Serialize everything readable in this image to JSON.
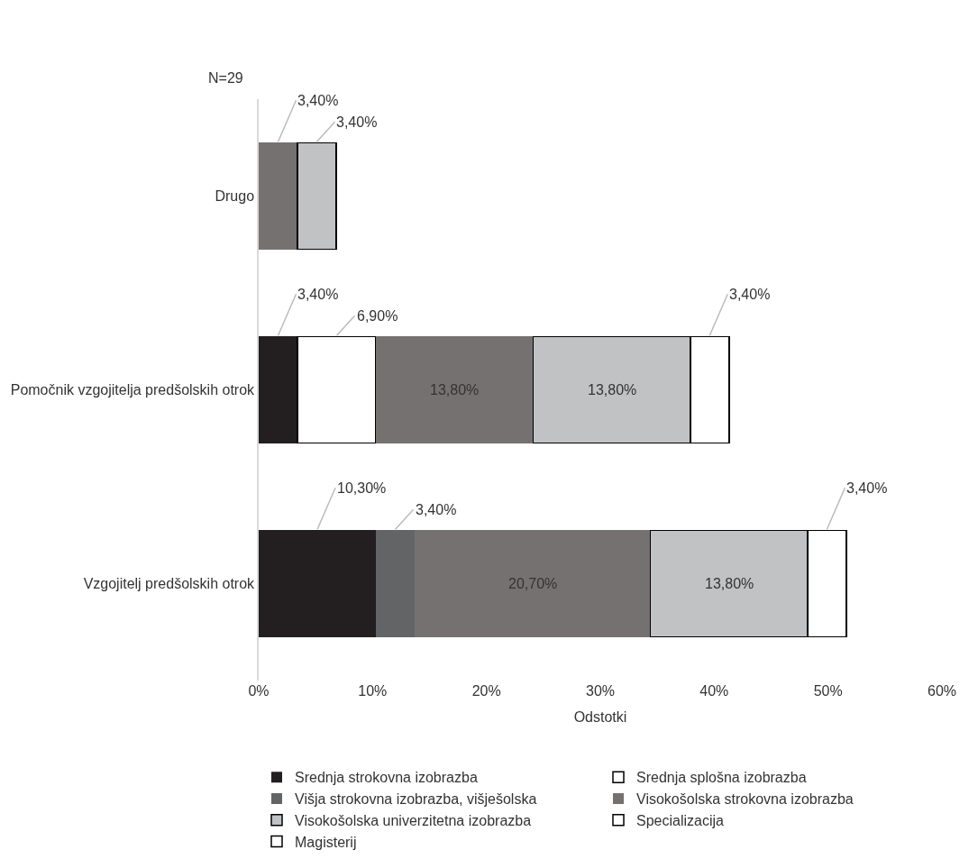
{
  "chart_data": {
    "type": "bar",
    "orientation": "horizontal",
    "stacked": true,
    "xlabel": "Odstotki",
    "annotations": [
      "N=29"
    ],
    "categories": [
      "Drugo",
      "Pomočnik vzgojitelja predšolskih otrok",
      "Vzgojitelj predšolskih otrok"
    ],
    "xlim": [
      0,
      60
    ],
    "xticks": [
      {
        "value": 0,
        "label": "0%"
      },
      {
        "value": 10,
        "label": "10%"
      },
      {
        "value": 20,
        "label": "20%"
      },
      {
        "value": 30,
        "label": "30%"
      },
      {
        "value": 40,
        "label": "40%"
      },
      {
        "value": 50,
        "label": "50%"
      },
      {
        "value": 60,
        "label": "60%"
      }
    ],
    "legend": "bottom",
    "series": [
      {
        "name": "Srednja strokovna izobrazba",
        "color": "#231f20",
        "values": [
          null,
          3.4,
          10.3
        ],
        "value_labels": [
          null,
          "3,40%",
          "10,30%"
        ]
      },
      {
        "name": "Srednja splošna izobrazba",
        "color": "#ffffff",
        "values": [
          null,
          6.9,
          null
        ],
        "value_labels": [
          null,
          "6,90%",
          null
        ]
      },
      {
        "name": "Višja strokovna izobrazba, višješolska",
        "color": "#636466",
        "values": [
          null,
          null,
          3.4
        ],
        "value_labels": [
          null,
          null,
          "3,40%"
        ]
      },
      {
        "name": "Visokošolska strokovna izobrazba",
        "color": "#767171",
        "values": [
          3.4,
          13.8,
          20.7
        ],
        "value_labels": [
          "3,40%",
          "13,80%",
          "20,70%"
        ]
      },
      {
        "name": "Visokošolska univerzitetna izobrazba",
        "color": "#c1c2c4",
        "values": [
          3.4,
          13.8,
          13.8
        ],
        "value_labels": [
          "3,40%",
          "13,80%",
          "13,80%"
        ]
      },
      {
        "name": "Specializacija",
        "color": "#ffffff",
        "values": [
          null,
          3.4,
          null
        ],
        "value_labels": [
          null,
          "3,40%",
          null
        ]
      },
      {
        "name": "Magisterij",
        "color": "#ffffff",
        "values": [
          null,
          null,
          3.4
        ],
        "value_labels": [
          null,
          null,
          "3,40%"
        ]
      }
    ]
  }
}
